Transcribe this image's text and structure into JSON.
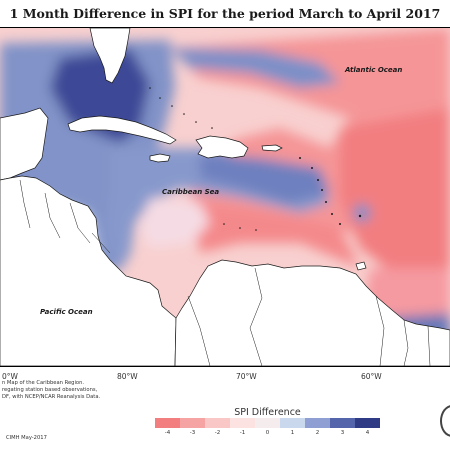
{
  "title": "1 Month Difference in SPI for the period March to April 2017",
  "labels": {
    "atlantic_ocean": "Atlantic Ocean",
    "caribbean_sea": "Caribbean Sea",
    "pacific_ocean": "Pacific Ocean"
  },
  "longitudes": [
    "0°W",
    "80°W",
    "70°W",
    "60°W"
  ],
  "credits": [
    "n Map of the Caribbean Region.",
    "regating station based observations,",
    "DF, with NCEP/NCAR Reanalysis Data."
  ],
  "footer_left": "CIMH May-2017",
  "legend": {
    "title": "SPI Difference",
    "ticks": [
      "-4",
      "-3",
      "-2",
      "-1",
      "0",
      "1",
      "2",
      "3",
      "4"
    ],
    "colors": [
      "#f27e80",
      "#f6a3a3",
      "#f9c7c5",
      "#fce2e0",
      "#f5eded",
      "#c9d8ec",
      "#8f9fd3",
      "#5565ac",
      "#303b85"
    ]
  },
  "colors": {
    "drier": "#f7a6a5",
    "wetter": "#7283c0",
    "land": "#ffffff"
  }
}
